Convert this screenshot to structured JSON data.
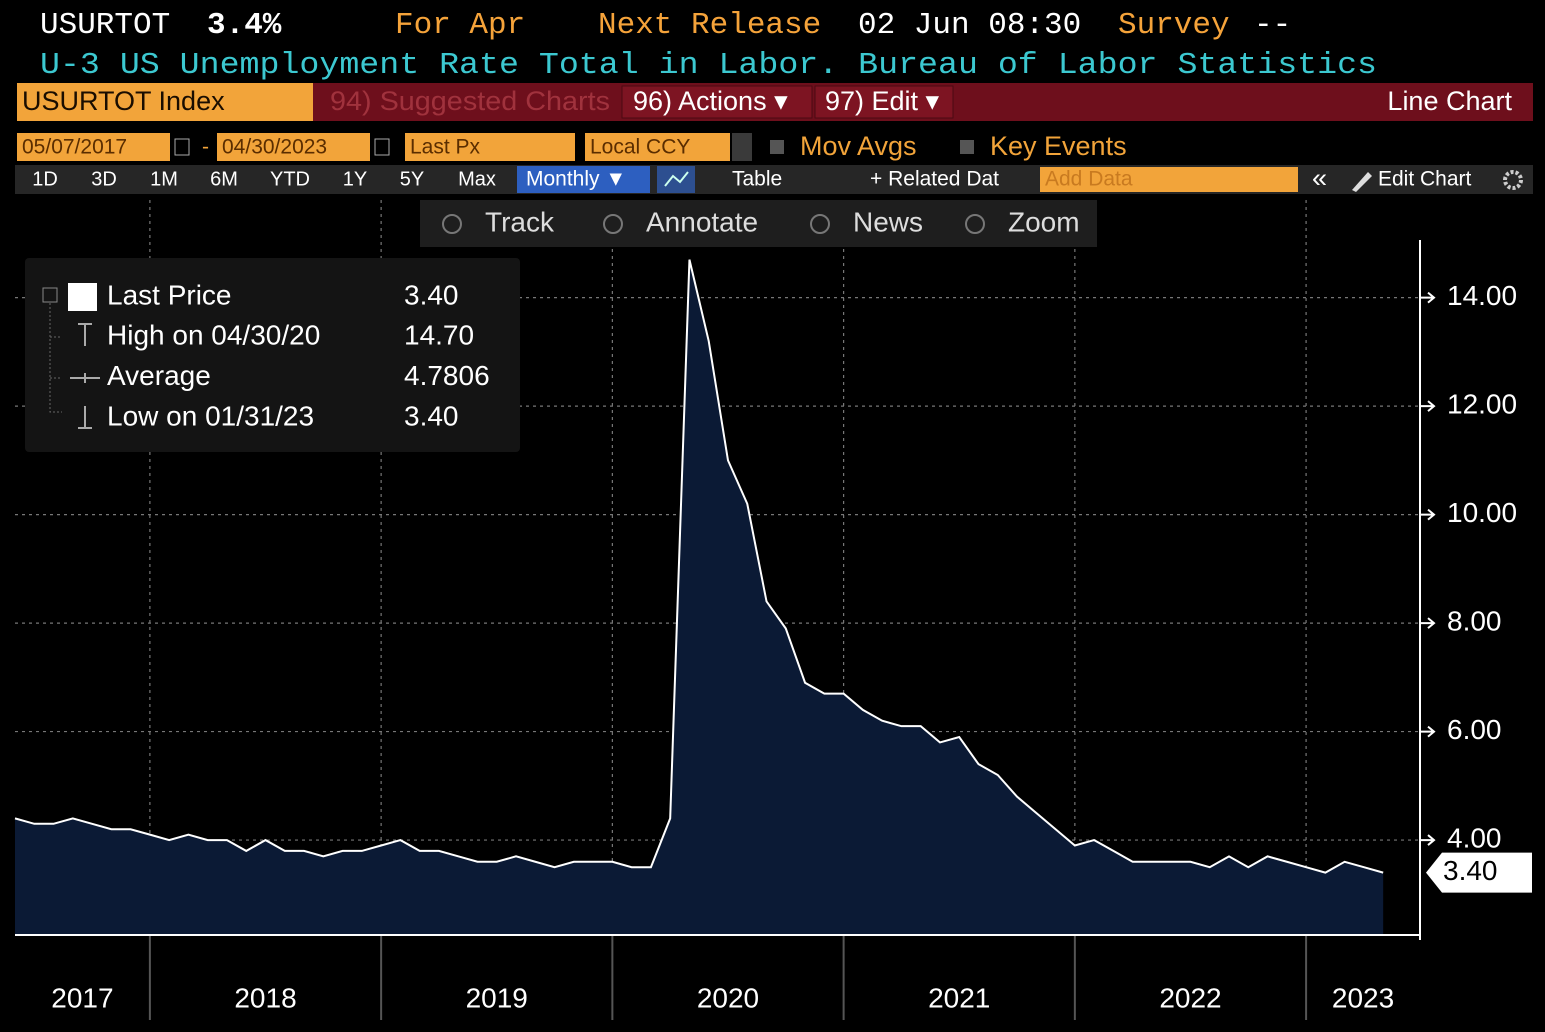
{
  "header": {
    "ticker": "USURTOT",
    "value": "3.4%",
    "period": "For Apr",
    "next_release_label": "Next Release",
    "next_release": "02 Jun 08:30",
    "survey_label": "Survey",
    "survey": "--",
    "description": "U-3 US Unemployment Rate Total in Labor. Bureau of Labor Statistics"
  },
  "toolbar": {
    "security": "USURTOT Index",
    "suggested": "94) Suggested Charts",
    "actions": "96) Actions ▾",
    "edit": "97) Edit ▾",
    "chart_type": "Line Chart"
  },
  "controls": {
    "start_date": "05/07/2017",
    "separator": "-",
    "end_date": "04/30/2023",
    "field": "Last Px",
    "currency": "Local CCY",
    "mov_avgs": "Mov Avgs",
    "key_events": "Key Events"
  },
  "range_bar": {
    "ranges": [
      "1D",
      "3D",
      "1M",
      "6M",
      "YTD",
      "1Y",
      "5Y",
      "Max"
    ],
    "frequency": "Monthly ▼",
    "table": "Table",
    "related": "+ Related Dat",
    "add_data": "Add Data",
    "collapse": "«",
    "edit_chart": "Edit Chart"
  },
  "chart_tools": [
    "Track",
    "Annotate",
    "News",
    "Zoom"
  ],
  "legend": [
    {
      "label": "Last Price",
      "value": "3.40"
    },
    {
      "label": "High on 04/30/20",
      "value": "14.70"
    },
    {
      "label": "Average",
      "value": "4.7806"
    },
    {
      "label": "Low on 01/31/23",
      "value": "3.40"
    }
  ],
  "chart_data": {
    "type": "area",
    "color": "#ffffff",
    "fill_color": "#0b1a35",
    "grid": true,
    "years": [
      "2017",
      "2018",
      "2019",
      "2020",
      "2021",
      "2022",
      "2023"
    ],
    "values": [
      4.4,
      4.3,
      4.3,
      4.4,
      4.3,
      4.2,
      4.2,
      4.1,
      4.0,
      4.1,
      4.0,
      4.0,
      3.8,
      4.0,
      3.8,
      3.8,
      3.7,
      3.8,
      3.8,
      3.9,
      4.0,
      3.8,
      3.8,
      3.7,
      3.6,
      3.6,
      3.7,
      3.6,
      3.5,
      3.6,
      3.6,
      3.6,
      3.5,
      3.5,
      4.4,
      14.7,
      13.2,
      11.0,
      10.2,
      8.4,
      7.9,
      6.9,
      6.7,
      6.7,
      6.4,
      6.2,
      6.1,
      6.1,
      5.8,
      5.9,
      5.4,
      5.2,
      4.8,
      4.5,
      4.2,
      3.9,
      4.0,
      3.8,
      3.6,
      3.6,
      3.6,
      3.6,
      3.5,
      3.7,
      3.5,
      3.7,
      3.6,
      3.5,
      3.4,
      3.6,
      3.5,
      3.4
    ],
    "last_label": "3.40",
    "ylim": [
      2.25,
      15.8
    ],
    "yticks": [
      {
        "value": 4,
        "label": "4.00"
      },
      {
        "value": 6,
        "label": "6.00"
      },
      {
        "value": 8,
        "label": "8.00"
      },
      {
        "value": 10,
        "label": "10.00"
      },
      {
        "value": 12,
        "label": "12.00"
      },
      {
        "value": 14,
        "label": "14.00"
      }
    ]
  }
}
